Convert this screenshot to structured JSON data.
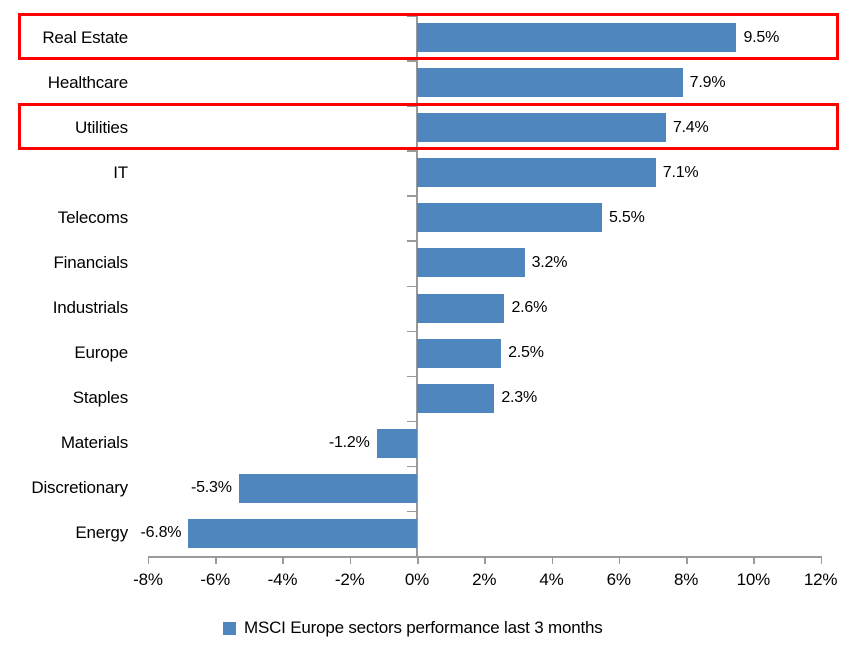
{
  "chart_data": {
    "type": "bar",
    "orientation": "horizontal",
    "title": "",
    "xlabel": "",
    "ylabel": "",
    "categories": [
      "Real Estate",
      "Healthcare",
      "Utilities",
      "IT",
      "Telecoms",
      "Financials",
      "Industrials",
      "Europe",
      "Staples",
      "Materials",
      "Discretionary",
      "Energy"
    ],
    "values": [
      9.5,
      7.9,
      7.4,
      7.1,
      5.5,
      3.2,
      2.6,
      2.5,
      2.3,
      -1.2,
      -5.3,
      -6.8
    ],
    "value_labels": [
      "9.5%",
      "7.9%",
      "7.4%",
      "7.1%",
      "5.5%",
      "3.2%",
      "2.6%",
      "2.5%",
      "2.3%",
      "-1.2%",
      "-5.3%",
      "-6.8%"
    ],
    "highlighted_categories": [
      "Real Estate",
      "Utilities"
    ],
    "xlim": [
      -8,
      12
    ],
    "x_tick_values": [
      -8,
      -6,
      -4,
      -2,
      0,
      2,
      4,
      6,
      8,
      10,
      12
    ],
    "x_tick_labels": [
      "-8%",
      "-6%",
      "-4%",
      "-2%",
      "0%",
      "2%",
      "4%",
      "6%",
      "8%",
      "10%",
      "12%"
    ],
    "grid": false,
    "legend_position": "bottom",
    "legend": "MSCI Europe sectors performance last 3 months",
    "colors": {
      "bar": "#4e86bd",
      "highlight_border": "#fe0000",
      "axis": "#9a9a9a",
      "text": "#000000",
      "background": "#ffffff"
    }
  }
}
